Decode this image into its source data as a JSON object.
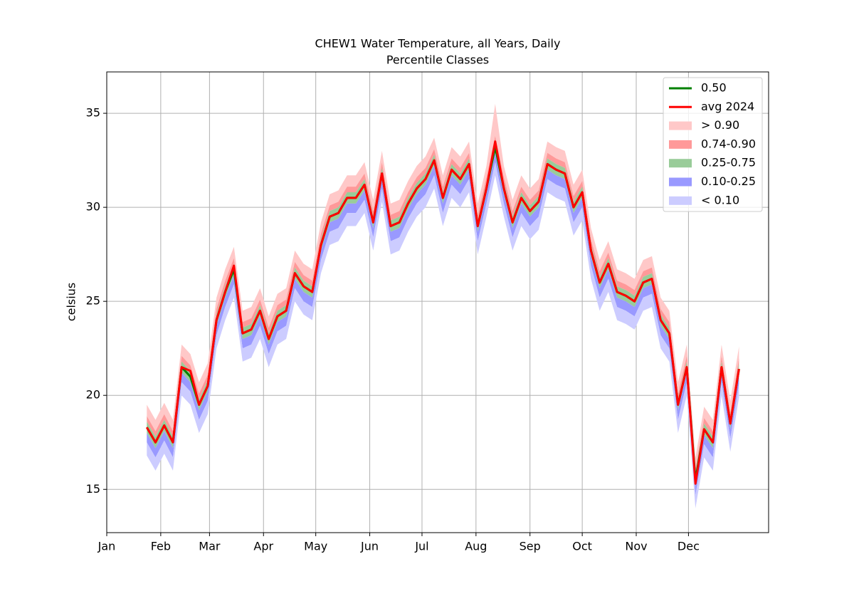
{
  "chart_data": {
    "type": "percentile-band-line",
    "title": "CHEW1 Water Temperature, all Years, Daily",
    "subtitle": "Percentile Classes",
    "y_label": "celsius",
    "xlim": [
      1,
      381
    ],
    "ylim": [
      12.7,
      37.2
    ],
    "xticks": [
      {
        "value": 1,
        "label": "Jan"
      },
      {
        "value": 32,
        "label": "Feb"
      },
      {
        "value": 60,
        "label": "Mar"
      },
      {
        "value": 91,
        "label": "Apr"
      },
      {
        "value": 121,
        "label": "May"
      },
      {
        "value": 152,
        "label": "Jun"
      },
      {
        "value": 182,
        "label": "Jul"
      },
      {
        "value": 213,
        "label": "Aug"
      },
      {
        "value": 244,
        "label": "Sep"
      },
      {
        "value": 274,
        "label": "Oct"
      },
      {
        "value": 305,
        "label": "Nov"
      },
      {
        "value": 335,
        "label": "Dec"
      }
    ],
    "yticks": [
      15,
      20,
      25,
      30,
      35
    ],
    "grid": true,
    "legend": "upper right",
    "x": [
      24,
      29,
      34,
      39,
      44,
      49,
      54,
      59,
      64,
      69,
      74,
      79,
      84,
      89,
      94,
      99,
      104,
      109,
      114,
      119,
      124,
      129,
      134,
      139,
      144,
      149,
      154,
      159,
      164,
      169,
      174,
      179,
      184,
      189,
      194,
      199,
      204,
      209,
      214,
      219,
      224,
      229,
      234,
      239,
      244,
      249,
      254,
      259,
      264,
      269,
      274,
      279,
      284,
      289,
      294,
      299,
      304,
      309,
      314,
      319,
      324,
      329,
      334,
      339,
      344,
      349,
      354,
      359,
      364
    ],
    "series": [
      {
        "name": "0.50",
        "kind": "line",
        "color": "#008000",
        "values": [
          18.3,
          17.5,
          18.4,
          17.5,
          21.5,
          21.0,
          19.5,
          20.5,
          24.0,
          25.5,
          26.7,
          23.3,
          23.5,
          24.5,
          23.0,
          24.2,
          24.5,
          26.5,
          25.8,
          25.5,
          28.0,
          29.5,
          29.7,
          30.5,
          30.5,
          31.2,
          29.2,
          31.8,
          29.0,
          29.2,
          30.2,
          31.0,
          31.5,
          32.5,
          30.5,
          32.0,
          31.5,
          32.3,
          29.0,
          31.0,
          33.2,
          31.0,
          29.2,
          30.5,
          29.8,
          30.3,
          32.3,
          32.0,
          31.8,
          30.0,
          30.8,
          27.7,
          26.0,
          27.0,
          25.5,
          25.3,
          25.0,
          26.0,
          26.2,
          24.0,
          23.3,
          19.5,
          21.5,
          15.5,
          18.2,
          17.5,
          21.5,
          18.5,
          21.4
        ]
      },
      {
        "name": "avg 2024",
        "kind": "line",
        "color": "#ff0000",
        "values": [
          18.3,
          17.5,
          18.4,
          17.5,
          21.5,
          21.3,
          19.5,
          20.5,
          24.0,
          25.5,
          26.9,
          23.3,
          23.5,
          24.5,
          23.0,
          24.2,
          24.5,
          26.5,
          25.8,
          25.5,
          28.0,
          29.5,
          29.7,
          30.5,
          30.5,
          31.2,
          29.2,
          31.8,
          29.0,
          29.2,
          30.2,
          31.0,
          31.5,
          32.5,
          30.5,
          32.0,
          31.5,
          32.3,
          29.0,
          31.0,
          33.5,
          31.0,
          29.2,
          30.5,
          29.8,
          30.3,
          32.3,
          32.0,
          31.8,
          30.0,
          30.8,
          27.7,
          26.0,
          27.0,
          25.5,
          25.3,
          25.0,
          26.0,
          26.2,
          24.0,
          23.3,
          19.5,
          21.5,
          15.3,
          18.2,
          17.5,
          21.5,
          18.5,
          21.4
        ]
      },
      {
        "name": "> 0.90",
        "kind": "band",
        "color": "#ffc8c8",
        "values": [
          19.5,
          18.7,
          19.6,
          18.7,
          22.7,
          22.2,
          20.7,
          21.7,
          25.2,
          26.7,
          27.9,
          24.5,
          24.7,
          25.7,
          24.2,
          25.4,
          25.7,
          27.7,
          27.0,
          26.7,
          29.2,
          30.7,
          30.9,
          31.7,
          31.7,
          32.4,
          30.4,
          33.0,
          30.2,
          30.4,
          31.4,
          32.2,
          32.7,
          33.7,
          31.7,
          33.2,
          32.7,
          33.5,
          30.2,
          32.2,
          35.5,
          32.2,
          30.4,
          31.7,
          31.0,
          31.5,
          33.5,
          33.2,
          33.0,
          31.2,
          32.0,
          28.9,
          27.2,
          28.2,
          26.7,
          26.5,
          26.2,
          27.2,
          27.4,
          25.2,
          24.5,
          20.7,
          22.7,
          16.7,
          19.4,
          18.7,
          22.7,
          19.7,
          22.6
        ]
      },
      {
        "name": "0.74-0.90",
        "kind": "band",
        "color": "#ff9999",
        "values": [
          18.9,
          18.1,
          19.0,
          18.1,
          22.1,
          21.6,
          20.1,
          21.1,
          24.6,
          26.1,
          27.3,
          23.9,
          24.1,
          25.1,
          23.6,
          24.8,
          25.1,
          27.1,
          26.4,
          26.1,
          28.6,
          30.1,
          30.3,
          31.1,
          31.1,
          31.8,
          29.8,
          32.4,
          29.6,
          29.8,
          30.8,
          31.6,
          32.1,
          33.1,
          31.1,
          32.6,
          32.1,
          32.9,
          29.6,
          31.6,
          33.8,
          31.6,
          29.8,
          31.1,
          30.4,
          30.9,
          32.9,
          32.6,
          32.4,
          30.6,
          31.4,
          28.3,
          26.6,
          27.6,
          26.1,
          25.9,
          25.6,
          26.6,
          26.8,
          24.6,
          23.9,
          20.1,
          22.1,
          16.1,
          18.8,
          18.1,
          22.1,
          19.1,
          22.0
        ]
      },
      {
        "name": "0.25-0.75",
        "kind": "band",
        "color": "#99cc99",
        "values": [
          18.6,
          17.8,
          18.7,
          17.8,
          21.8,
          21.3,
          19.8,
          20.8,
          24.3,
          25.8,
          27.0,
          23.6,
          23.8,
          24.8,
          23.3,
          24.5,
          24.8,
          26.8,
          26.1,
          25.8,
          28.3,
          29.8,
          30.0,
          30.8,
          30.8,
          31.5,
          29.5,
          32.1,
          29.3,
          29.5,
          30.5,
          31.3,
          31.8,
          32.8,
          30.8,
          32.3,
          31.8,
          32.6,
          29.3,
          31.3,
          33.5,
          31.3,
          29.5,
          30.8,
          30.1,
          30.6,
          32.6,
          32.3,
          32.1,
          30.3,
          31.1,
          28.0,
          26.3,
          27.3,
          25.8,
          25.6,
          25.3,
          26.3,
          26.5,
          24.3,
          23.6,
          19.8,
          21.8,
          15.8,
          18.5,
          17.8,
          21.8,
          18.8,
          21.7
        ]
      },
      {
        "name": "0.10-0.25",
        "kind": "band",
        "color": "#9999ff",
        "values": [
          18.0,
          17.2,
          18.1,
          17.2,
          21.2,
          20.7,
          19.2,
          20.2,
          23.7,
          25.2,
          26.4,
          23.0,
          23.2,
          24.2,
          22.7,
          23.9,
          24.2,
          26.2,
          25.5,
          25.2,
          27.7,
          29.2,
          29.4,
          30.2,
          30.2,
          30.9,
          28.9,
          31.5,
          28.7,
          28.9,
          29.9,
          30.7,
          31.2,
          32.2,
          30.2,
          31.7,
          31.2,
          32.0,
          28.7,
          30.7,
          32.9,
          30.7,
          28.9,
          30.2,
          29.5,
          30.0,
          32.0,
          31.7,
          31.5,
          29.7,
          30.5,
          27.4,
          25.7,
          26.7,
          25.2,
          25.0,
          24.7,
          25.7,
          25.9,
          23.7,
          23.0,
          19.2,
          21.2,
          15.2,
          17.9,
          17.2,
          21.2,
          18.2,
          21.1
        ]
      },
      {
        "name": "< 0.10",
        "kind": "band",
        "color": "#ccccff",
        "values": [
          17.5,
          16.7,
          17.6,
          16.7,
          20.7,
          20.2,
          18.7,
          19.7,
          23.2,
          24.7,
          25.9,
          22.5,
          22.7,
          23.7,
          22.2,
          23.4,
          23.7,
          25.7,
          25.0,
          24.7,
          27.2,
          28.7,
          28.9,
          29.7,
          29.7,
          30.4,
          28.4,
          31.0,
          28.2,
          28.4,
          29.4,
          30.2,
          30.7,
          31.7,
          29.7,
          31.2,
          30.7,
          31.5,
          28.2,
          30.2,
          32.4,
          30.2,
          28.4,
          29.7,
          29.0,
          29.5,
          31.5,
          31.2,
          31.0,
          29.2,
          30.0,
          26.9,
          25.2,
          26.2,
          24.7,
          24.5,
          24.2,
          25.2,
          25.4,
          23.2,
          22.5,
          18.7,
          20.7,
          14.7,
          17.4,
          16.7,
          20.7,
          17.7,
          20.6
        ],
        "lower": [
          16.8,
          16.0,
          16.9,
          16.0,
          20.0,
          19.5,
          18.0,
          19.0,
          22.5,
          24.0,
          25.2,
          21.8,
          22.0,
          23.0,
          21.5,
          22.7,
          23.0,
          25.0,
          24.3,
          24.0,
          26.5,
          28.0,
          28.2,
          29.0,
          29.0,
          29.7,
          27.7,
          30.3,
          27.5,
          27.7,
          28.7,
          29.5,
          30.0,
          31.0,
          29.0,
          30.5,
          30.0,
          30.8,
          27.5,
          29.5,
          31.7,
          29.5,
          27.7,
          29.0,
          28.3,
          28.8,
          30.8,
          30.5,
          30.3,
          28.5,
          29.3,
          26.2,
          24.5,
          25.5,
          24.0,
          23.8,
          23.5,
          24.5,
          24.7,
          22.5,
          21.8,
          18.0,
          20.0,
          14.0,
          16.7,
          16.0,
          20.0,
          17.0,
          19.9
        ]
      }
    ]
  }
}
